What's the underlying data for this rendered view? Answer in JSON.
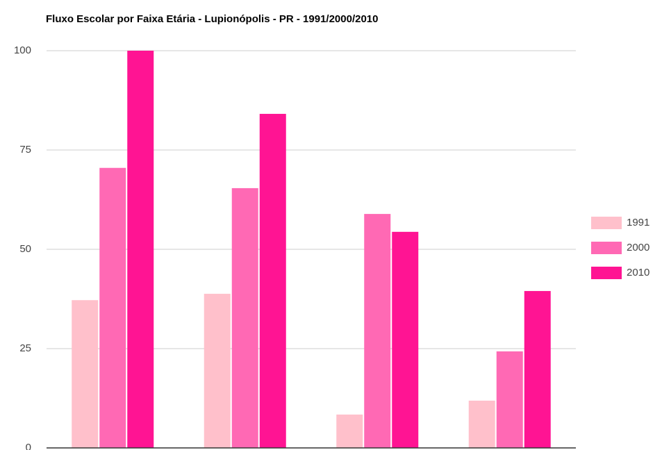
{
  "chart_data": {
    "type": "bar",
    "title": "Fluxo Escolar por Faixa Etária - Lupionópolis - PR - 1991/2000/2010",
    "categories": [
      null,
      null,
      null,
      null
    ],
    "series": [
      {
        "name": "1991",
        "color": "#ffc0cb",
        "values": [
          37.2,
          38.8,
          8.4,
          11.9
        ]
      },
      {
        "name": "2000",
        "color": "#ff69b4",
        "values": [
          70.5,
          65.4,
          58.9,
          24.3
        ]
      },
      {
        "name": "2010",
        "color": "#ff1493",
        "values": [
          100,
          84.1,
          54.4,
          39.5
        ]
      }
    ],
    "ylim": [
      0,
      100
    ],
    "yticks": [
      0,
      25,
      50,
      75,
      100
    ],
    "grid": true,
    "legend": "right"
  }
}
